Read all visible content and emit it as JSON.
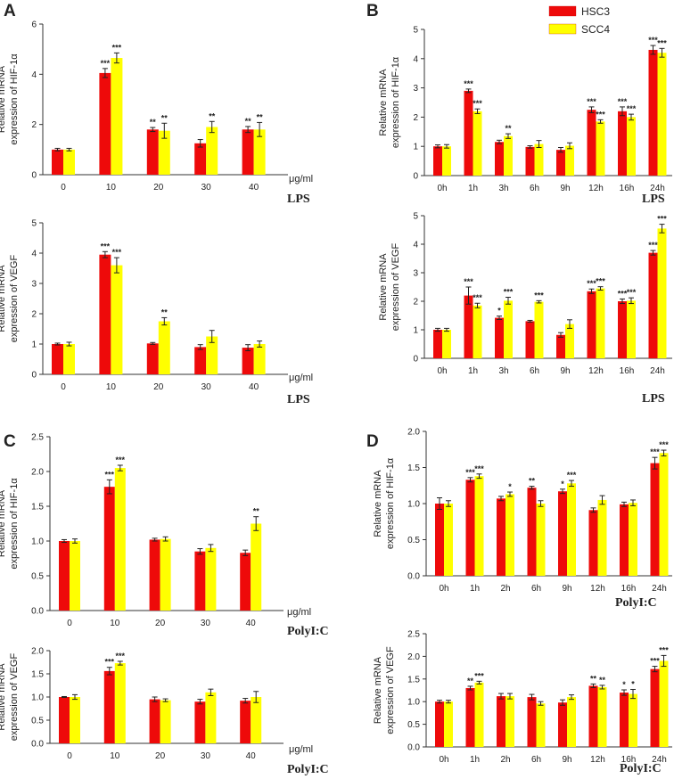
{
  "colors": {
    "HSC3": "#ee0a0a",
    "SCC4": "#ffff00",
    "axis": "#333333",
    "error": "#222222"
  },
  "legend": {
    "items": [
      "HSC3",
      "SCC4"
    ]
  },
  "panels": [
    {
      "letter": "A"
    },
    {
      "letter": "B"
    },
    {
      "letter": "C"
    },
    {
      "letter": "D"
    }
  ],
  "chart_data": [
    {
      "id": "A-top",
      "panel": "A",
      "type": "bar",
      "ylabel": [
        "Relative mRNA",
        "expression of HIF-1α"
      ],
      "categories": [
        "0",
        "10",
        "20",
        "30",
        "40"
      ],
      "unit_label": "μg/ml",
      "agent_label": "LPS",
      "ylim": [
        0,
        6
      ],
      "yticks": [
        "0",
        "2",
        "4",
        "6"
      ],
      "ytick_values": [
        0,
        2,
        4,
        6
      ],
      "series": [
        {
          "name": "HSC3",
          "values": [
            1.0,
            4.05,
            1.8,
            1.25,
            1.8
          ],
          "errors": [
            0.05,
            0.18,
            0.08,
            0.15,
            0.12
          ],
          "sig": [
            "",
            "***",
            "**",
            "",
            "**"
          ]
        },
        {
          "name": "SCC4",
          "values": [
            1.0,
            4.65,
            1.75,
            1.9,
            1.8
          ],
          "errors": [
            0.05,
            0.2,
            0.3,
            0.22,
            0.28
          ],
          "sig": [
            "",
            "***",
            "**",
            "**",
            "**"
          ]
        }
      ]
    },
    {
      "id": "A-bottom",
      "panel": "A",
      "type": "bar",
      "ylabel": [
        "Relative mRNA",
        "expression of VEGF"
      ],
      "categories": [
        "0",
        "10",
        "20",
        "30",
        "40"
      ],
      "unit_label": "μg/ml",
      "agent_label": "LPS",
      "ylim": [
        0,
        5
      ],
      "yticks": [
        "0",
        "1",
        "2",
        "3",
        "4",
        "5"
      ],
      "ytick_values": [
        0,
        1,
        2,
        3,
        4,
        5
      ],
      "series": [
        {
          "name": "HSC3",
          "values": [
            1.0,
            3.95,
            1.02,
            0.9,
            0.88
          ],
          "errors": [
            0.03,
            0.1,
            0.03,
            0.08,
            0.1
          ],
          "sig": [
            "",
            "***",
            "",
            "",
            ""
          ]
        },
        {
          "name": "SCC4",
          "values": [
            1.0,
            3.6,
            1.75,
            1.25,
            1.0
          ],
          "errors": [
            0.06,
            0.25,
            0.12,
            0.2,
            0.1
          ],
          "sig": [
            "",
            "***",
            "**",
            "",
            ""
          ]
        }
      ]
    },
    {
      "id": "B-top",
      "panel": "B",
      "type": "bar",
      "ylabel": [
        "Relative mRNA",
        "expression of HIF-1α"
      ],
      "categories": [
        "0h",
        "1h",
        "3h",
        "6h",
        "9h",
        "12h",
        "16h",
        "24h"
      ],
      "unit_label": "",
      "agent_label": "LPS",
      "ylim": [
        0,
        5
      ],
      "yticks": [
        "0",
        "1",
        "2",
        "3",
        "4",
        "5"
      ],
      "ytick_values": [
        0,
        1,
        2,
        3,
        4,
        5
      ],
      "series": [
        {
          "name": "HSC3",
          "values": [
            1.0,
            2.9,
            1.15,
            0.98,
            0.88,
            2.25,
            2.2,
            4.3
          ],
          "errors": [
            0.05,
            0.06,
            0.06,
            0.04,
            0.08,
            0.1,
            0.15,
            0.15
          ],
          "sig": [
            "",
            "***",
            "",
            "",
            "",
            "***",
            "***",
            "***"
          ]
        },
        {
          "name": "SCC4",
          "values": [
            1.0,
            2.2,
            1.35,
            1.08,
            1.02,
            1.85,
            2.0,
            4.2
          ],
          "errors": [
            0.06,
            0.08,
            0.08,
            0.12,
            0.1,
            0.06,
            0.1,
            0.15
          ],
          "sig": [
            "",
            "***",
            "**",
            "",
            "",
            "***",
            "***",
            "***"
          ]
        }
      ]
    },
    {
      "id": "B-bottom",
      "panel": "B",
      "type": "bar",
      "ylabel": [
        "Relative mRNA",
        "expression of VEGF"
      ],
      "categories": [
        "0h",
        "1h",
        "3h",
        "6h",
        "9h",
        "12h",
        "16h",
        "24h"
      ],
      "unit_label": "",
      "agent_label": "LPS",
      "ylim": [
        0,
        5
      ],
      "yticks": [
        "0",
        "1",
        "2",
        "3",
        "4",
        "5"
      ],
      "ytick_values": [
        0,
        1,
        2,
        3,
        4,
        5
      ],
      "series": [
        {
          "name": "HSC3",
          "values": [
            1.0,
            2.2,
            1.42,
            1.3,
            0.82,
            2.35,
            2.0,
            3.7
          ],
          "errors": [
            0.05,
            0.3,
            0.06,
            0.03,
            0.08,
            0.08,
            0.08,
            0.08
          ],
          "sig": [
            "",
            "***",
            "*",
            "",
            "",
            "***",
            "***",
            "***"
          ]
        },
        {
          "name": "SCC4",
          "values": [
            1.0,
            1.85,
            2.02,
            1.98,
            1.2,
            2.45,
            2.02,
            4.55
          ],
          "errors": [
            0.05,
            0.08,
            0.12,
            0.04,
            0.15,
            0.06,
            0.1,
            0.15
          ],
          "sig": [
            "",
            "***",
            "***",
            "***",
            "",
            "***",
            "***",
            "***"
          ]
        }
      ]
    },
    {
      "id": "C-top",
      "panel": "C",
      "type": "bar",
      "ylabel": [
        "Relative mRNA",
        "expression of HIF-1α"
      ],
      "categories": [
        "0",
        "10",
        "20",
        "30",
        "40"
      ],
      "unit_label": "μg/ml",
      "agent_label": "PolyI:C",
      "ylim": [
        0,
        2.5
      ],
      "yticks": [
        "0.0",
        "0.5",
        "1.0",
        "1.5",
        "2.0",
        "2.5"
      ],
      "ytick_values": [
        0,
        0.5,
        1,
        1.5,
        2,
        2.5
      ],
      "series": [
        {
          "name": "HSC3",
          "values": [
            1.0,
            1.78,
            1.02,
            0.85,
            0.83
          ],
          "errors": [
            0.02,
            0.1,
            0.02,
            0.04,
            0.04
          ],
          "sig": [
            "",
            "***",
            "",
            "",
            ""
          ]
        },
        {
          "name": "SCC4",
          "values": [
            1.0,
            2.05,
            1.03,
            0.9,
            1.25
          ],
          "errors": [
            0.03,
            0.04,
            0.03,
            0.05,
            0.1
          ],
          "sig": [
            "",
            "***",
            "",
            "",
            "**"
          ]
        }
      ]
    },
    {
      "id": "C-bottom",
      "panel": "C",
      "type": "bar",
      "ylabel": [
        "Relative mRNA",
        "expression of VEGF"
      ],
      "categories": [
        "0",
        "10",
        "20",
        "30",
        "40"
      ],
      "unit_label": "μg/ml",
      "agent_label": "PolyI:C",
      "ylim": [
        0,
        2.0
      ],
      "yticks": [
        "0.0",
        "0.5",
        "1.0",
        "1.5",
        "2.0"
      ],
      "ytick_values": [
        0,
        0.5,
        1,
        1.5,
        2
      ],
      "series": [
        {
          "name": "HSC3",
          "values": [
            1.0,
            1.56,
            0.95,
            0.9,
            0.92
          ],
          "errors": [
            0.01,
            0.08,
            0.05,
            0.05,
            0.05
          ],
          "sig": [
            "",
            "***",
            "",
            "",
            ""
          ]
        },
        {
          "name": "SCC4",
          "values": [
            1.0,
            1.73,
            0.93,
            1.1,
            1.0
          ],
          "errors": [
            0.05,
            0.04,
            0.03,
            0.07,
            0.12
          ],
          "sig": [
            "",
            "***",
            "",
            "",
            ""
          ]
        }
      ]
    },
    {
      "id": "D-top",
      "panel": "D",
      "type": "bar",
      "ylabel": [
        "Relative mRNA",
        "expression of HIF-1α"
      ],
      "categories": [
        "0h",
        "1h",
        "2h",
        "6h",
        "9h",
        "12h",
        "16h",
        "24h"
      ],
      "unit_label": "",
      "agent_label": "PolyI:C",
      "ylim": [
        0,
        2.0
      ],
      "yticks": [
        "0.0",
        "0.5",
        "1.0",
        "1.5",
        "2.0"
      ],
      "ytick_values": [
        0,
        0.5,
        1,
        1.5,
        2
      ],
      "series": [
        {
          "name": "HSC3",
          "values": [
            1.0,
            1.33,
            1.07,
            1.22,
            1.17,
            0.91,
            0.99,
            1.56
          ],
          "errors": [
            0.08,
            0.03,
            0.03,
            0.02,
            0.03,
            0.03,
            0.03,
            0.08
          ],
          "sig": [
            "",
            "***",
            "",
            "**",
            "*",
            "",
            "",
            "***"
          ]
        },
        {
          "name": "SCC4",
          "values": [
            1.0,
            1.38,
            1.13,
            1.0,
            1.28,
            1.05,
            1.01,
            1.7
          ],
          "errors": [
            0.04,
            0.03,
            0.03,
            0.04,
            0.04,
            0.06,
            0.04,
            0.04
          ],
          "sig": [
            "",
            "***",
            "*",
            "",
            "***",
            "",
            "",
            "***"
          ]
        }
      ]
    },
    {
      "id": "D-bottom",
      "panel": "D",
      "type": "bar",
      "ylabel": [
        "Relative mRNA",
        "expression of VEGF"
      ],
      "categories": [
        "0h",
        "1h",
        "2h",
        "6h",
        "9h",
        "12h",
        "16h",
        "24h"
      ],
      "unit_label": "",
      "agent_label": "PolyI:C",
      "ylim": [
        0,
        2.5
      ],
      "yticks": [
        "0.0",
        "0.5",
        "1.0",
        "1.5",
        "2.0",
        "2.5"
      ],
      "ytick_values": [
        0,
        0.5,
        1,
        1.5,
        2,
        2.5
      ],
      "series": [
        {
          "name": "HSC3",
          "values": [
            1.0,
            1.3,
            1.12,
            1.1,
            0.98,
            1.35,
            1.2,
            1.72
          ],
          "errors": [
            0.03,
            0.04,
            0.06,
            0.06,
            0.06,
            0.04,
            0.06,
            0.06
          ],
          "sig": [
            "",
            "**",
            "",
            "",
            "",
            "**",
            "*",
            "***"
          ]
        },
        {
          "name": "SCC4",
          "values": [
            1.0,
            1.42,
            1.12,
            0.96,
            1.1,
            1.32,
            1.17,
            1.9
          ],
          "errors": [
            0.03,
            0.03,
            0.06,
            0.04,
            0.05,
            0.04,
            0.1,
            0.12
          ],
          "sig": [
            "",
            "***",
            "",
            "",
            "",
            "**",
            "*",
            "***"
          ]
        }
      ]
    }
  ]
}
